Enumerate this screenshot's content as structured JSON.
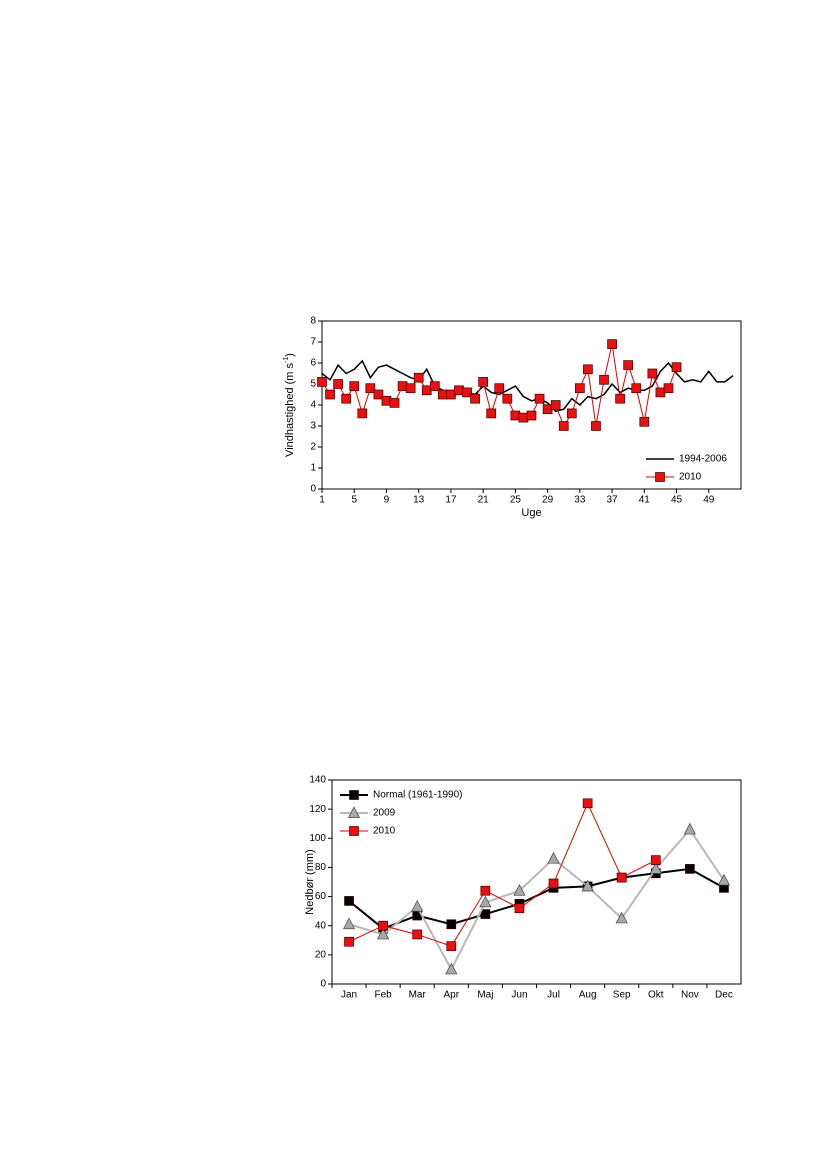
{
  "chart_data": [
    {
      "type": "line",
      "ylabel": {
        "text": "Vindhastighed (m s",
        "sup": "-1",
        "end": ")"
      },
      "xlabel": "Uge",
      "x": [
        1,
        2,
        3,
        4,
        5,
        6,
        7,
        8,
        9,
        10,
        11,
        12,
        13,
        14,
        15,
        16,
        17,
        18,
        19,
        20,
        21,
        22,
        23,
        24,
        25,
        26,
        27,
        28,
        29,
        30,
        31,
        32,
        33,
        34,
        35,
        36,
        37,
        38,
        39,
        40,
        41,
        42,
        43,
        44,
        45,
        46,
        47,
        48,
        49,
        50,
        51,
        52
      ],
      "xlim": [
        1,
        53
      ],
      "xticks": [
        1,
        5,
        9,
        13,
        17,
        21,
        25,
        29,
        33,
        37,
        41,
        45,
        49
      ],
      "ylim": [
        0,
        8
      ],
      "yticks": [
        0,
        1,
        2,
        3,
        4,
        5,
        6,
        7,
        8
      ],
      "legend": "bottom-right",
      "series": [
        {
          "name": "1994-2006",
          "color": "#000000",
          "marker": "none",
          "line_width": 1.5,
          "values": [
            5.5,
            5.2,
            5.9,
            5.5,
            5.7,
            6.1,
            5.3,
            5.8,
            5.9,
            5.7,
            5.5,
            5.3,
            5.2,
            5.7,
            4.9,
            4.7,
            4.6,
            4.6,
            4.6,
            4.5,
            4.9,
            4.6,
            4.5,
            4.7,
            4.9,
            4.4,
            4.2,
            4.3,
            4.1,
            3.7,
            3.8,
            4.3,
            4.0,
            4.4,
            4.3,
            4.5,
            5.0,
            4.6,
            4.8,
            4.7,
            4.7,
            4.9,
            5.6,
            6.0,
            5.5,
            5.1,
            5.2,
            5.1,
            5.6,
            5.1,
            5.1,
            5.4
          ]
        },
        {
          "name": "2010",
          "color": "#e00000",
          "marker": "square",
          "marker_color": "#e81010",
          "line_width": 1,
          "values": [
            5.1,
            4.5,
            5.0,
            4.3,
            4.9,
            3.6,
            4.8,
            4.5,
            4.2,
            4.1,
            4.9,
            4.8,
            5.3,
            4.7,
            4.9,
            4.5,
            4.5,
            4.7,
            4.6,
            4.3,
            5.1,
            3.6,
            4.8,
            4.3,
            3.5,
            3.4,
            3.5,
            4.3,
            3.8,
            4.0,
            3.0,
            3.6,
            4.8,
            5.7,
            3.0,
            5.2,
            6.9,
            4.3,
            5.9,
            4.8,
            3.2,
            5.5,
            4.6,
            4.8,
            5.8,
            null,
            null,
            null,
            null,
            null,
            null,
            null
          ]
        }
      ]
    },
    {
      "type": "line",
      "ylabel": {
        "text": "Nedbør (mm)"
      },
      "categories": [
        "Jan",
        "Feb",
        "Mar",
        "Apr",
        "Maj",
        "Jun",
        "Jul",
        "Aug",
        "Sep",
        "Okt",
        "Nov",
        "Dec"
      ],
      "ylim": [
        0,
        140
      ],
      "yticks": [
        0,
        20,
        40,
        60,
        80,
        100,
        120,
        140
      ],
      "legend": "top-left",
      "series": [
        {
          "name": "Normal (1961-1990)",
          "color": "#000000",
          "marker": "square",
          "marker_color": "#000000",
          "line_width": 2,
          "values": [
            57,
            38,
            47,
            41,
            48,
            55,
            66,
            67,
            73,
            76,
            79,
            66
          ]
        },
        {
          "name": "2009",
          "color": "#b8b8b8",
          "marker": "triangle",
          "marker_color": "#a8a8a8",
          "line_width": 2,
          "values": [
            41,
            34,
            53,
            10,
            56,
            64,
            86,
            67,
            45,
            79,
            106,
            71
          ]
        },
        {
          "name": "2010",
          "color": "#e00000",
          "marker": "square",
          "marker_color": "#e81010",
          "line_width": 1,
          "values": [
            29,
            40,
            34,
            26,
            64,
            52,
            69,
            124,
            73,
            85,
            null,
            null
          ]
        }
      ]
    }
  ]
}
